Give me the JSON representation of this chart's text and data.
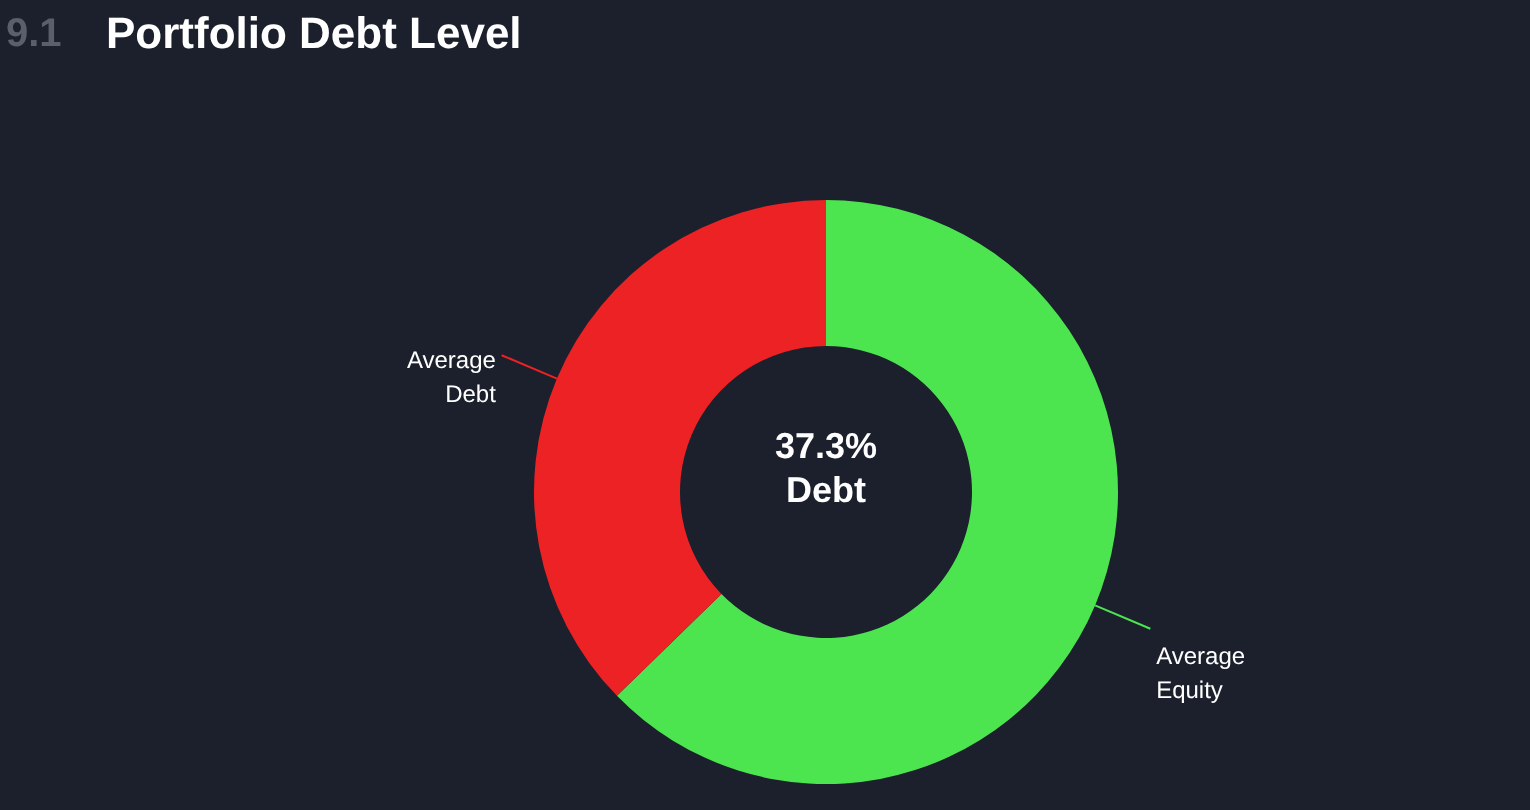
{
  "chart_data": {
    "type": "donut",
    "title": "Portfolio Debt Level",
    "categories": [
      "Average\nDebt",
      "Average\nEquity"
    ],
    "values": [
      37.3,
      62.7
    ],
    "colors": [
      "#ed2224",
      "#4de54f"
    ],
    "annotations": [
      "9.1",
      "37.3%\nDebt"
    ]
  }
}
